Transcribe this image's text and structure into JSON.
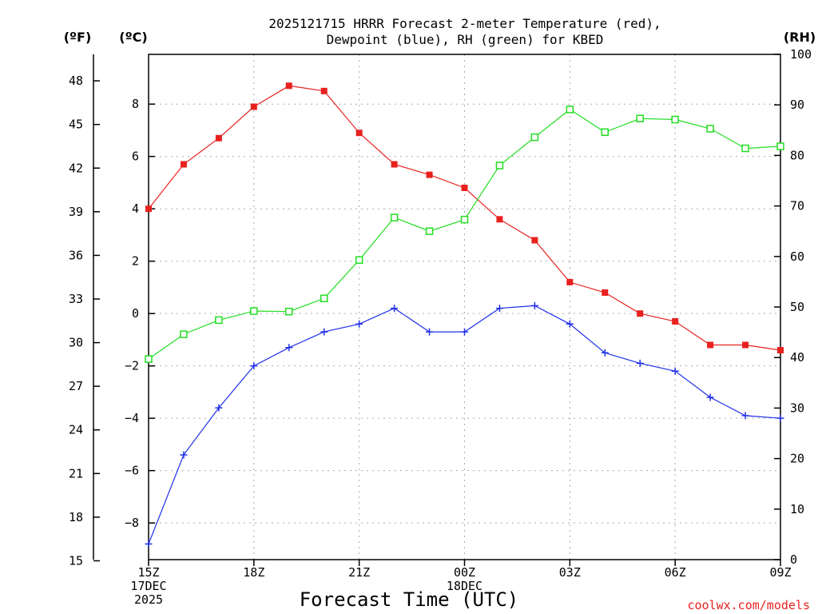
{
  "chart_data": {
    "type": "line",
    "title_line1": "2025121715 HRRR Forecast 2-meter Temperature (red),",
    "title_line2": "Dewpoint (blue), RH (green) for KBED",
    "xlabel": "Forecast Time (UTC)",
    "credit": "coolwx.com/models",
    "units": {
      "fahrenheit": "(ºF)",
      "celsius": "(ºC)",
      "rh": "(RH)"
    },
    "x_hours": [
      0,
      1,
      2,
      3,
      4,
      5,
      6,
      7,
      8,
      9,
      10,
      11,
      12,
      13,
      14,
      15,
      16,
      17,
      18
    ],
    "xlim": [
      0,
      18
    ],
    "x_ticks": [
      {
        "hour": 0,
        "lines": [
          "15Z",
          "17DEC",
          "2025"
        ]
      },
      {
        "hour": 3,
        "lines": [
          "18Z"
        ]
      },
      {
        "hour": 6,
        "lines": [
          "21Z"
        ]
      },
      {
        "hour": 9,
        "lines": [
          "00Z",
          "18DEC"
        ]
      },
      {
        "hour": 12,
        "lines": [
          "03Z"
        ]
      },
      {
        "hour": 15,
        "lines": [
          "06Z"
        ]
      },
      {
        "hour": 18,
        "lines": [
          "09Z"
        ]
      }
    ],
    "celsius_axis": {
      "ylim": [
        -9.4,
        9.9
      ],
      "ticks": [
        "−8",
        "−6",
        "−4",
        "−2",
        "0",
        "2",
        "4",
        "6",
        "8"
      ],
      "tick_values": [
        -8,
        -6,
        -4,
        -2,
        0,
        2,
        4,
        6,
        8
      ]
    },
    "fahrenheit_axis": {
      "ticks": [
        "15",
        "18",
        "21",
        "24",
        "27",
        "30",
        "33",
        "36",
        "39",
        "42",
        "45",
        "48"
      ],
      "tick_values": [
        15,
        18,
        21,
        24,
        27,
        30,
        33,
        36,
        39,
        42,
        45,
        48
      ]
    },
    "rh_axis": {
      "ylim": [
        0,
        100
      ],
      "ticks": [
        "0",
        "10",
        "20",
        "30",
        "40",
        "50",
        "60",
        "70",
        "80",
        "90",
        "100"
      ],
      "tick_values": [
        0,
        10,
        20,
        30,
        40,
        50,
        60,
        70,
        80,
        90,
        100
      ]
    },
    "series": [
      {
        "name": "Temperature",
        "axis": "celsius",
        "color": "#e8211f",
        "marker": "filled-square",
        "values": [
          4.0,
          5.7,
          6.7,
          7.9,
          8.7,
          8.5,
          6.9,
          5.7,
          5.3,
          4.8,
          3.6,
          2.8,
          1.2,
          0.8,
          0.0,
          -0.3,
          -1.2,
          -1.2,
          -1.4
        ]
      },
      {
        "name": "Dewpoint",
        "axis": "celsius",
        "color": "#2030e8",
        "marker": "plus",
        "values": [
          -8.8,
          -5.4,
          -3.6,
          -2.0,
          -1.3,
          -0.7,
          -0.4,
          0.2,
          -0.7,
          -0.7,
          0.2,
          0.3,
          -0.4,
          -1.5,
          -1.9,
          -2.2,
          -3.2,
          -3.9,
          -4.0
        ]
      },
      {
        "name": "Relative Humidity",
        "axis": "rh",
        "color": "#22dd22",
        "marker": "open-square",
        "values": [
          39.7,
          44.6,
          47.4,
          49.2,
          49.1,
          51.7,
          59.3,
          67.7,
          65.0,
          67.3,
          78.0,
          83.6,
          89.1,
          84.6,
          87.3,
          87.1,
          85.3,
          81.4,
          81.8
        ]
      }
    ]
  }
}
